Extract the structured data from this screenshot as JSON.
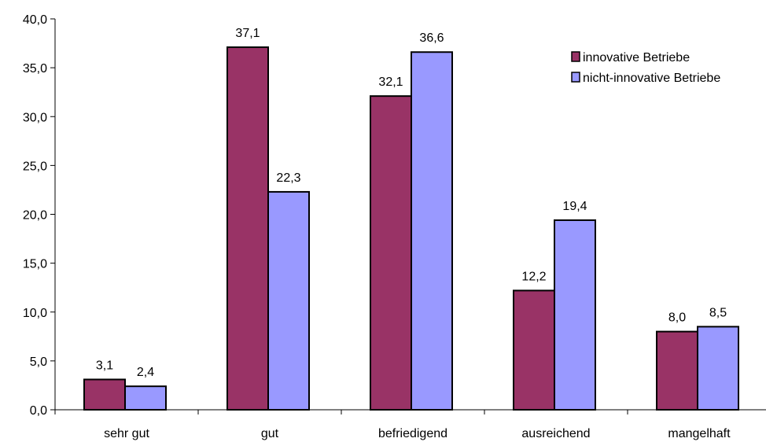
{
  "chart_data": {
    "type": "bar",
    "title": "",
    "xlabel": "",
    "ylabel": "",
    "categories": [
      "sehr gut",
      "gut",
      "befriedigend",
      "ausreichend",
      "mangelhaft"
    ],
    "series": [
      {
        "name": "innovative Betriebe",
        "color": "#993366",
        "values": [
          3.1,
          37.1,
          32.1,
          12.2,
          8.0
        ],
        "labels": [
          "3,1",
          "37,1",
          "32,1",
          "12,2",
          "8,0"
        ]
      },
      {
        "name": "nicht-innovative Betriebe",
        "color": "#9999FF",
        "values": [
          2.4,
          22.3,
          36.6,
          19.4,
          8.5
        ],
        "labels": [
          "2,4",
          "22,3",
          "36,6",
          "19,4",
          "8,5"
        ]
      }
    ],
    "ylim": [
      0,
      40
    ],
    "yticks": [
      0,
      5,
      10,
      15,
      20,
      25,
      30,
      35,
      40
    ],
    "ytick_labels": [
      "0,0",
      "5,0",
      "10,0",
      "15,0",
      "20,0",
      "25,0",
      "30,0",
      "35,0",
      "40,0"
    ],
    "grid": false,
    "legend_position": "top-right"
  }
}
